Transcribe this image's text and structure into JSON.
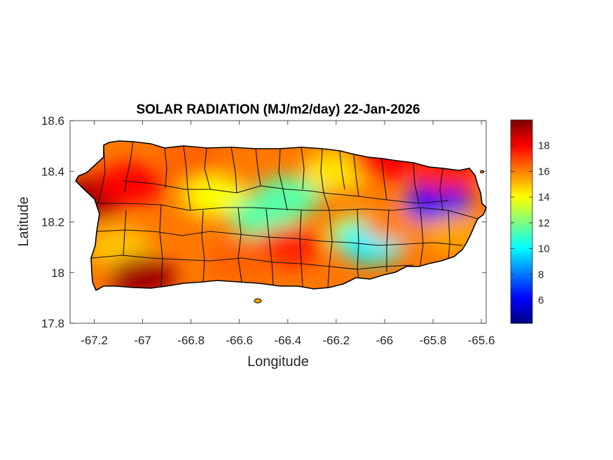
{
  "map": {
    "title": "SOLAR RADIATION (MJ/m2/day) 22-Jan-2026",
    "xlabel": "Longitude",
    "ylabel": "Latitude",
    "xlim": [
      -67.3,
      -65.58
    ],
    "ylim": [
      17.8,
      18.6
    ],
    "xticks": [
      -67.2,
      -67,
      -66.8,
      -66.6,
      -66.4,
      -66.2,
      -66,
      -65.8,
      -65.6
    ],
    "yticks": [
      17.8,
      18,
      18.2,
      18.4,
      18.6
    ],
    "xtick_labels": [
      "-67.2",
      "-67",
      "-66.8",
      "-66.6",
      "-66.4",
      "-66.2",
      "-66",
      "-65.8",
      "-65.6"
    ],
    "ytick_labels": [
      "17.8",
      "18",
      "18.2",
      "18.4",
      "18.6"
    ],
    "colorbar": {
      "colormap": "jet",
      "range": [
        4.2,
        20
      ],
      "ticks": [
        6,
        8,
        10,
        12,
        14,
        16,
        18
      ],
      "tick_labels": [
        "6",
        "8",
        "10",
        "12",
        "14",
        "16",
        "18"
      ]
    },
    "region": "Puerto Rico municipalities"
  },
  "chart_data": {
    "type": "heatmap",
    "title": "SOLAR RADIATION (MJ/m2/day) 22-Jan-2026",
    "xlabel": "Longitude",
    "ylabel": "Latitude",
    "xlim": [
      -67.3,
      -65.58
    ],
    "ylim": [
      17.8,
      18.6
    ],
    "colorbar_range": [
      4.2,
      20
    ],
    "colormap": "jet",
    "approx_values": [
      {
        "lon": -67.2,
        "lat": 18.3,
        "value": 19.5
      },
      {
        "lon": -67.05,
        "lat": 18.35,
        "value": 18
      },
      {
        "lon": -67.1,
        "lat": 18.1,
        "value": 15
      },
      {
        "lon": -67.0,
        "lat": 17.98,
        "value": 19.5
      },
      {
        "lon": -66.8,
        "lat": 18.45,
        "value": 16.5
      },
      {
        "lon": -66.7,
        "lat": 18.3,
        "value": 14
      },
      {
        "lon": -66.5,
        "lat": 18.22,
        "value": 11.5
      },
      {
        "lon": -66.4,
        "lat": 18.3,
        "value": 11.5
      },
      {
        "lon": -66.4,
        "lat": 18.1,
        "value": 17.5
      },
      {
        "lon": -66.6,
        "lat": 18.05,
        "value": 16.5
      },
      {
        "lon": -66.2,
        "lat": 18.4,
        "value": 14.5
      },
      {
        "lon": -66.1,
        "lat": 18.15,
        "value": 13
      },
      {
        "lon": -66.05,
        "lat": 18.12,
        "value": 10
      },
      {
        "lon": -66.0,
        "lat": 18.45,
        "value": 18
      },
      {
        "lon": -65.95,
        "lat": 18.2,
        "value": 16
      },
      {
        "lon": -65.78,
        "lat": 18.28,
        "value": 6
      },
      {
        "lon": -65.75,
        "lat": 18.4,
        "value": 17.5
      },
      {
        "lon": -65.7,
        "lat": 18.15,
        "value": 15.5
      }
    ]
  }
}
